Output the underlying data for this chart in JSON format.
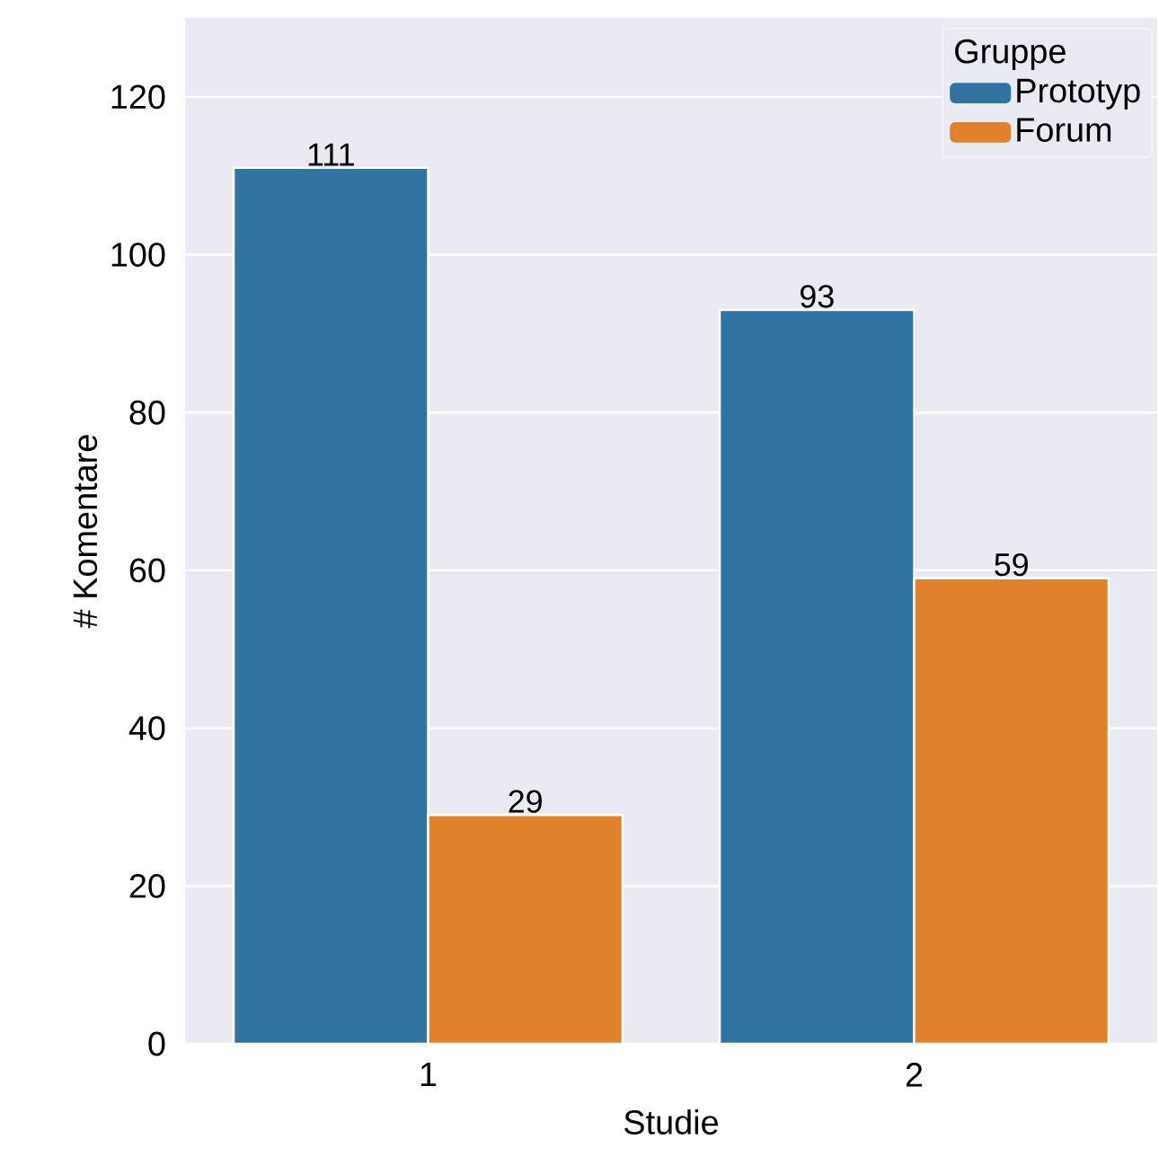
{
  "chart_data": {
    "type": "bar",
    "xlabel": "Studie",
    "ylabel": "# Komentare",
    "legend_title": "Gruppe",
    "categories": [
      "1",
      "2"
    ],
    "series": [
      {
        "name": "Prototyp",
        "color": "#3274a1",
        "values": [
          111,
          93
        ]
      },
      {
        "name": "Forum",
        "color": "#e1812c",
        "values": [
          29,
          59
        ]
      }
    ],
    "ylim": [
      0,
      130
    ],
    "yticks": [
      0,
      20,
      40,
      60,
      80,
      100,
      120
    ],
    "grid": "y",
    "legend": "top right",
    "data_labels": true
  }
}
